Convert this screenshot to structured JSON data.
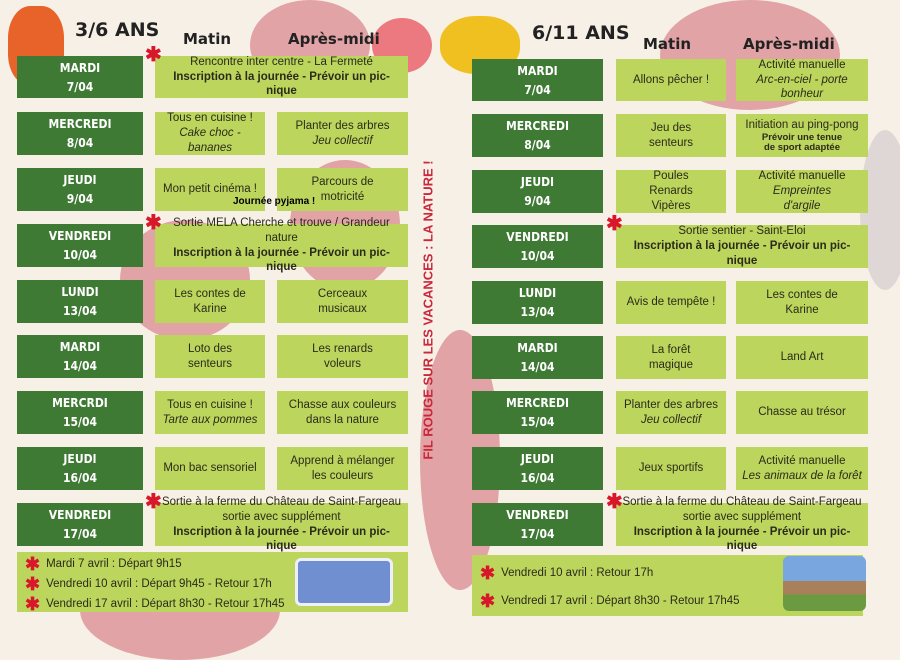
{
  "theme": "FIL ROUGE SUR LES VACANCES : LA NATURE !",
  "colors": {
    "day_bg": "#3f7a35",
    "activity_bg": "#bcd55c",
    "accent_red": "#d8182a",
    "flower": "#d98a8f",
    "background": "#f7f0e7"
  },
  "left": {
    "age": "3/6 ANS",
    "morning_header": "Matin",
    "afternoon_header": "Après-midi",
    "rows": [
      {
        "day": "MARDI",
        "date": "7/04",
        "star": true,
        "full": [
          {
            "t": "Rencontre inter centre - La Fermeté",
            "s": "n"
          },
          {
            "t": "Inscription à la journée - Prévoir un pic-nique",
            "s": "b"
          }
        ]
      },
      {
        "day": "MERCREDI",
        "date": "8/04",
        "am": [
          {
            "t": "Tous en cuisine !",
            "s": "n"
          },
          {
            "t": "Cake choc -bananes",
            "s": "i"
          }
        ],
        "pm": [
          {
            "t": "Planter des arbres",
            "s": "n"
          },
          {
            "t": "Jeu collectif",
            "s": "i"
          }
        ]
      },
      {
        "day": "JEUDI",
        "date": "9/04",
        "am": [
          {
            "t": "Mon petit cinéma !",
            "s": "n"
          }
        ],
        "pm": [
          {
            "t": "Parcours de",
            "s": "n"
          },
          {
            "t": "motricité",
            "s": "n"
          }
        ],
        "note": "Journée pyjama !"
      },
      {
        "day": "VENDREDI",
        "date": "10/04",
        "star": true,
        "full": [
          {
            "t": "Sortie MELA   Cherche et trouve  / Grandeur nature",
            "s": "n"
          },
          {
            "t": "Inscription à la journée - Prévoir un pic-nique",
            "s": "b"
          }
        ]
      },
      {
        "day": "LUNDI",
        "date": "13/04",
        "am": [
          {
            "t": "Les contes de",
            "s": "n"
          },
          {
            "t": "Karine",
            "s": "n"
          }
        ],
        "pm": [
          {
            "t": "Cerceaux",
            "s": "n"
          },
          {
            "t": "musicaux",
            "s": "n"
          }
        ]
      },
      {
        "day": "MARDI",
        "date": "14/04",
        "am": [
          {
            "t": "Loto des",
            "s": "n"
          },
          {
            "t": "senteurs",
            "s": "n"
          }
        ],
        "pm": [
          {
            "t": "Les renards",
            "s": "n"
          },
          {
            "t": "voleurs",
            "s": "n"
          }
        ]
      },
      {
        "day": "MERCRDI",
        "date": "15/04",
        "am": [
          {
            "t": "Tous en cuisine !",
            "s": "n"
          },
          {
            "t": "Tarte aux pommes",
            "s": "i"
          }
        ],
        "pm": [
          {
            "t": "Chasse aux couleurs",
            "s": "n"
          },
          {
            "t": "dans la nature",
            "s": "n"
          }
        ]
      },
      {
        "day": "JEUDI",
        "date": "16/04",
        "am": [
          {
            "t": "Mon bac sensoriel",
            "s": "n"
          }
        ],
        "pm": [
          {
            "t": "Apprend à mélanger",
            "s": "n"
          },
          {
            "t": "les couleurs",
            "s": "n"
          }
        ]
      },
      {
        "day": "VENDREDI",
        "date": "17/04",
        "star": true,
        "full": [
          {
            "t": "Sortie à la ferme du Château de Saint-Fargeau",
            "s": "n"
          },
          {
            "t": "sortie avec supplément",
            "s": "n"
          },
          {
            "t": "Inscription à la journée - Prévoir un pic-nique",
            "s": "b"
          }
        ]
      }
    ],
    "footer": [
      "Mardi 7 avril : Départ 9h15",
      "Vendredi 10 avril : Départ 9h45 - Retour 17h",
      "Vendredi 17 avril : Départ 8h30 - Retour 17h45"
    ]
  },
  "right": {
    "age": "6/11 ANS",
    "morning_header": "Matin",
    "afternoon_header": "Après-midi",
    "rows": [
      {
        "day": "MARDI",
        "date": "7/04",
        "am": [
          {
            "t": "Allons pêcher !",
            "s": "n"
          }
        ],
        "pm": [
          {
            "t": "Activité manuelle",
            "s": "n"
          },
          {
            "t": "Arc-en-ciel - porte",
            "s": "i"
          },
          {
            "t": "bonheur",
            "s": "i"
          }
        ]
      },
      {
        "day": "MERCREDI",
        "date": "8/04",
        "am": [
          {
            "t": "Jeu des",
            "s": "n"
          },
          {
            "t": "senteurs",
            "s": "n"
          }
        ],
        "pm": [
          {
            "t": "Initiation au ping-pong",
            "s": "n"
          },
          {
            "t": "Prévoir une tenue",
            "s": "s"
          },
          {
            "t": "de sport adaptée",
            "s": "s"
          }
        ]
      },
      {
        "day": "JEUDI",
        "date": "9/04",
        "am": [
          {
            "t": "Poules",
            "s": "n"
          },
          {
            "t": "Renards",
            "s": "n"
          },
          {
            "t": "Vipères",
            "s": "n"
          }
        ],
        "pm": [
          {
            "t": "Activité manuelle",
            "s": "n"
          },
          {
            "t": "Empreintes",
            "s": "i"
          },
          {
            "t": "d'argile",
            "s": "i"
          }
        ]
      },
      {
        "day": "VENDREDI",
        "date": "10/04",
        "star": true,
        "full": [
          {
            "t": "Sortie sentier - Saint-Eloi",
            "s": "n"
          },
          {
            "t": "Inscription à la journée - Prévoir un pic-nique",
            "s": "b"
          }
        ]
      },
      {
        "day": "LUNDI",
        "date": "13/04",
        "am": [
          {
            "t": "Avis de tempête !",
            "s": "n"
          }
        ],
        "pm": [
          {
            "t": "Les contes de",
            "s": "n"
          },
          {
            "t": "Karine",
            "s": "n"
          }
        ]
      },
      {
        "day": "MARDI",
        "date": "14/04",
        "am": [
          {
            "t": "La forêt",
            "s": "n"
          },
          {
            "t": "magique",
            "s": "n"
          }
        ],
        "pm": [
          {
            "t": "Land Art",
            "s": "n"
          }
        ]
      },
      {
        "day": "MERCREDI",
        "date": "15/04",
        "am": [
          {
            "t": "Planter des arbres",
            "s": "n"
          },
          {
            "t": "Jeu collectif",
            "s": "i"
          }
        ],
        "pm": [
          {
            "t": "Chasse au trésor",
            "s": "n"
          }
        ]
      },
      {
        "day": "JEUDI",
        "date": "16/04",
        "am": [
          {
            "t": "Jeux sportifs",
            "s": "n"
          }
        ],
        "pm": [
          {
            "t": "Activité manuelle",
            "s": "n"
          },
          {
            "t": "Les animaux de la forêt",
            "s": "i"
          }
        ]
      },
      {
        "day": "VENDREDI",
        "date": "17/04",
        "star": true,
        "full": [
          {
            "t": "Sortie à la ferme du Château de Saint-Fargeau",
            "s": "n"
          },
          {
            "t": "sortie avec supplément",
            "s": "n"
          },
          {
            "t": "Inscription à la journée - Prévoir un pic-nique",
            "s": "b"
          }
        ]
      }
    ],
    "footer": [
      "Vendredi 10 avril :  Retour 17h",
      "Vendredi 17 avril : Départ 8h30 - Retour 17h45"
    ]
  }
}
